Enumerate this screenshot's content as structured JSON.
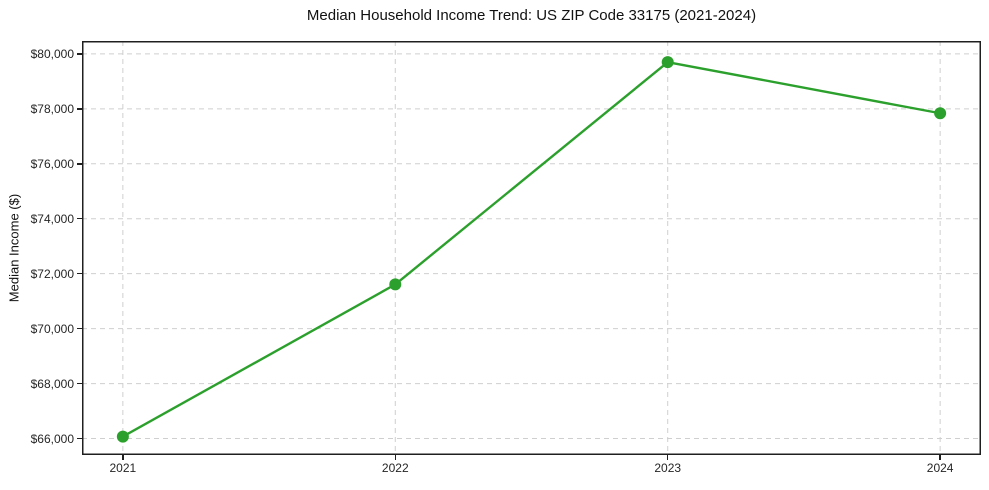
{
  "chart_data": {
    "type": "line",
    "title": "Median Household Income Trend: US ZIP Code 33175 (2021-2024)",
    "xlabel": "",
    "ylabel": "Median Income ($)",
    "x": [
      2021,
      2022,
      2023,
      2024
    ],
    "values": [
      66070,
      71610,
      79700,
      77840
    ],
    "line_color": "#2ca02c",
    "marker": "circle",
    "marker_radius": 6,
    "xlim": [
      2020.85,
      2024.15
    ],
    "ylim": [
      65400,
      80470
    ],
    "x_ticks": [
      {
        "value": 2021,
        "label": "2021"
      },
      {
        "value": 2022,
        "label": "2022"
      },
      {
        "value": 2023,
        "label": "2023"
      },
      {
        "value": 2024,
        "label": "2024"
      }
    ],
    "y_ticks": [
      {
        "value": 66000,
        "label": "$66,000"
      },
      {
        "value": 68000,
        "label": "$68,000"
      },
      {
        "value": 70000,
        "label": "$70,000"
      },
      {
        "value": 72000,
        "label": "$72,000"
      },
      {
        "value": 74000,
        "label": "$74,000"
      },
      {
        "value": 76000,
        "label": "$76,000"
      },
      {
        "value": 78000,
        "label": "$78,000"
      },
      {
        "value": 80000,
        "label": "$80,000"
      }
    ],
    "grid": true,
    "grid_color": "#cfcfcf",
    "grid_style": "dashed",
    "legend": "none",
    "background": "#ffffff"
  }
}
